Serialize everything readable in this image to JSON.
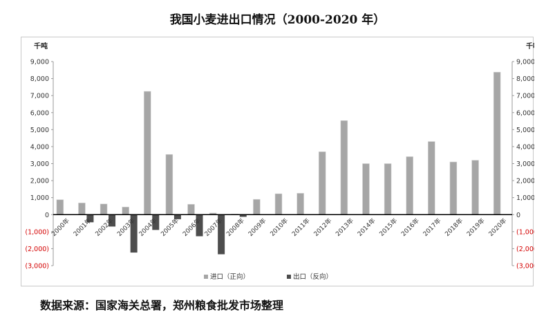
{
  "title": "我国小麦进出口情况（2000-2020 年）",
  "source": "数据来源：国家海关总署，郑州粮食批发市场整理",
  "chart_data": {
    "type": "bar",
    "title": "我国小麦进出口情况（2000-2020 年）",
    "ylabel_left": "千吨",
    "ylabel_right": "千吨",
    "ylim": [
      -3000,
      9000
    ],
    "yticks": [
      "(3,000)",
      "(2,000)",
      "(1,000)",
      "0",
      "1,000",
      "2,000",
      "3,000",
      "4,000",
      "5,000",
      "6,000",
      "7,000",
      "8,000",
      "9,000"
    ],
    "ytick_values": [
      -3000,
      -2000,
      -1000,
      0,
      1000,
      2000,
      3000,
      4000,
      5000,
      6000,
      7000,
      8000,
      9000
    ],
    "categories": [
      "2000年",
      "2001年",
      "2002年",
      "2003年",
      "2004年",
      "2005年",
      "2006年",
      "2007年",
      "2008年",
      "2009年",
      "2010年",
      "2011年",
      "2012年",
      "2013年",
      "2014年",
      "2015年",
      "2016年",
      "2017年",
      "2018年",
      "2019年",
      "2020年"
    ],
    "series": [
      {
        "name": "进口（正向）",
        "color": "#a6a6a6",
        "values": [
          880,
          690,
          630,
          450,
          7250,
          3540,
          610,
          100,
          40,
          900,
          1230,
          1260,
          3700,
          5530,
          3000,
          3000,
          3410,
          4300,
          3100,
          3200,
          8380
        ]
      },
      {
        "name": "出口（反向）",
        "color": "#4d4d4d",
        "values": [
          -30,
          -450,
          -700,
          -2230,
          -900,
          -270,
          -1270,
          -2330,
          -130,
          0,
          0,
          0,
          0,
          0,
          0,
          0,
          0,
          0,
          0,
          0,
          0
        ]
      }
    ],
    "legend_position": "bottom",
    "grid": false
  }
}
